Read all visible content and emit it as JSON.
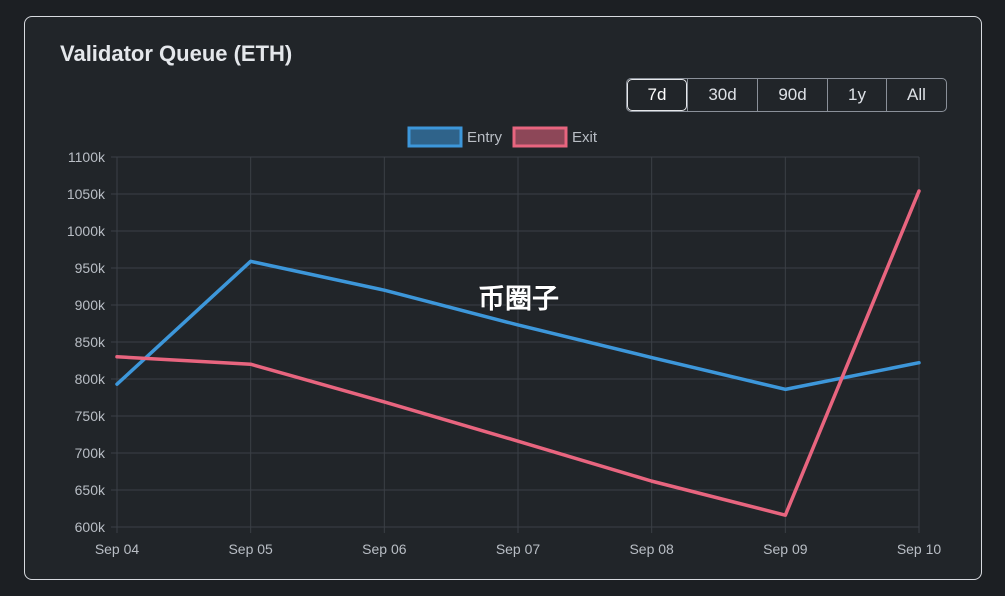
{
  "title": "Validator Queue (ETH)",
  "range_buttons": [
    {
      "label": "7d",
      "active": true
    },
    {
      "label": "30d",
      "active": false
    },
    {
      "label": "90d",
      "active": false
    },
    {
      "label": "1y",
      "active": false
    },
    {
      "label": "All",
      "active": false
    }
  ],
  "watermark": {
    "text": "币圈子"
  },
  "colors": {
    "entry": "#3d97da",
    "exit": "#e8657f",
    "grid": "#3b4046",
    "text": "#b9bec5"
  },
  "chart_data": {
    "type": "line",
    "title": "",
    "xlabel": "",
    "ylabel": "",
    "categories": [
      "Sep 04",
      "Sep 05",
      "Sep 06",
      "Sep 07",
      "Sep 08",
      "Sep 09",
      "Sep 10"
    ],
    "series": [
      {
        "name": "Entry",
        "values": [
          793000,
          959000,
          920000,
          873000,
          829000,
          786000,
          822000
        ]
      },
      {
        "name": "Exit",
        "values": [
          830000,
          820000,
          769000,
          716000,
          662000,
          616000,
          1054000
        ]
      }
    ],
    "ylim": [
      600000,
      1100000
    ],
    "y_ticks": [
      "1100k",
      "1050k",
      "1000k",
      "950k",
      "900k",
      "850k",
      "800k",
      "750k",
      "700k",
      "650k",
      "600k"
    ],
    "legend": "top-center",
    "grid": true
  }
}
